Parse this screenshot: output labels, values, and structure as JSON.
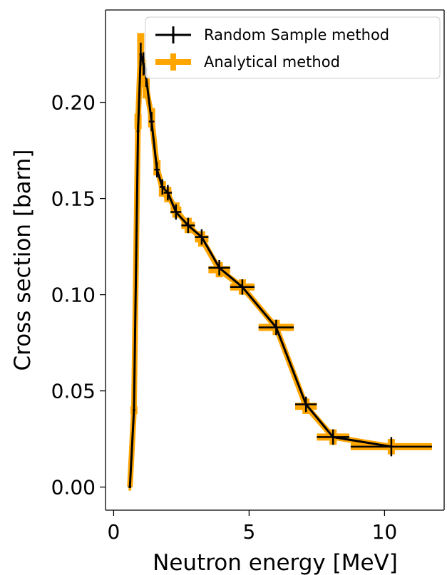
{
  "chart_data": {
    "type": "line",
    "xlabel": "Neutron energy [MeV]",
    "ylabel": "Cross section [barn]",
    "xlim": [
      -0.3,
      12.2
    ],
    "ylim": [
      -0.012,
      0.248
    ],
    "xticks": [
      0,
      5,
      10
    ],
    "xtick_labels": [
      "0",
      "5",
      "10"
    ],
    "yticks": [
      0.0,
      0.05,
      0.1,
      0.15,
      0.2
    ],
    "ytick_labels": [
      "0.00",
      "0.05",
      "0.10",
      "0.15",
      "0.20"
    ],
    "grid": false,
    "legend_position": "top-right",
    "series": [
      {
        "name": "Random Sample method",
        "color": "#000000",
        "x": [
          0.6,
          0.75,
          0.9,
          1.0,
          1.1,
          1.2,
          1.4,
          1.6,
          1.8,
          2.0,
          2.3,
          2.75,
          3.25,
          3.9,
          4.75,
          6.0,
          7.1,
          8.1,
          10.25
        ],
        "y": [
          0.0,
          0.04,
          0.185,
          0.225,
          0.22,
          0.213,
          0.19,
          0.165,
          0.156,
          0.153,
          0.143,
          0.136,
          0.13,
          0.114,
          0.104,
          0.083,
          0.043,
          0.026,
          0.021
        ],
        "xerr": [
          0.05,
          0.05,
          0.05,
          0.05,
          0.05,
          0.05,
          0.1,
          0.1,
          0.1,
          0.15,
          0.2,
          0.25,
          0.25,
          0.4,
          0.45,
          0.65,
          0.4,
          0.6,
          1.5
        ],
        "yerr": [
          0.0,
          0.002,
          0.004,
          0.006,
          0.006,
          0.005,
          0.005,
          0.004,
          0.004,
          0.004,
          0.004,
          0.004,
          0.004,
          0.004,
          0.004,
          0.004,
          0.004,
          0.004,
          0.005
        ]
      },
      {
        "name": "Analytical method",
        "color": "#ffa500",
        "x": [
          0.6,
          0.75,
          0.9,
          1.0,
          1.1,
          1.2,
          1.4,
          1.6,
          1.8,
          2.0,
          2.3,
          2.75,
          3.25,
          3.9,
          4.75,
          6.0,
          7.1,
          8.1,
          10.25
        ],
        "y": [
          0.0,
          0.04,
          0.19,
          0.228,
          0.215,
          0.208,
          0.192,
          0.166,
          0.155,
          0.152,
          0.144,
          0.136,
          0.129,
          0.113,
          0.104,
          0.083,
          0.042,
          0.026,
          0.021
        ],
        "xerr": [
          0.05,
          0.05,
          0.05,
          0.05,
          0.05,
          0.05,
          0.1,
          0.1,
          0.1,
          0.15,
          0.2,
          0.25,
          0.25,
          0.4,
          0.45,
          0.65,
          0.4,
          0.6,
          1.5
        ],
        "yerr": [
          0.0,
          0.002,
          0.004,
          0.008,
          0.007,
          0.006,
          0.005,
          0.004,
          0.004,
          0.004,
          0.004,
          0.004,
          0.004,
          0.004,
          0.004,
          0.004,
          0.004,
          0.004,
          0.004
        ]
      }
    ]
  }
}
